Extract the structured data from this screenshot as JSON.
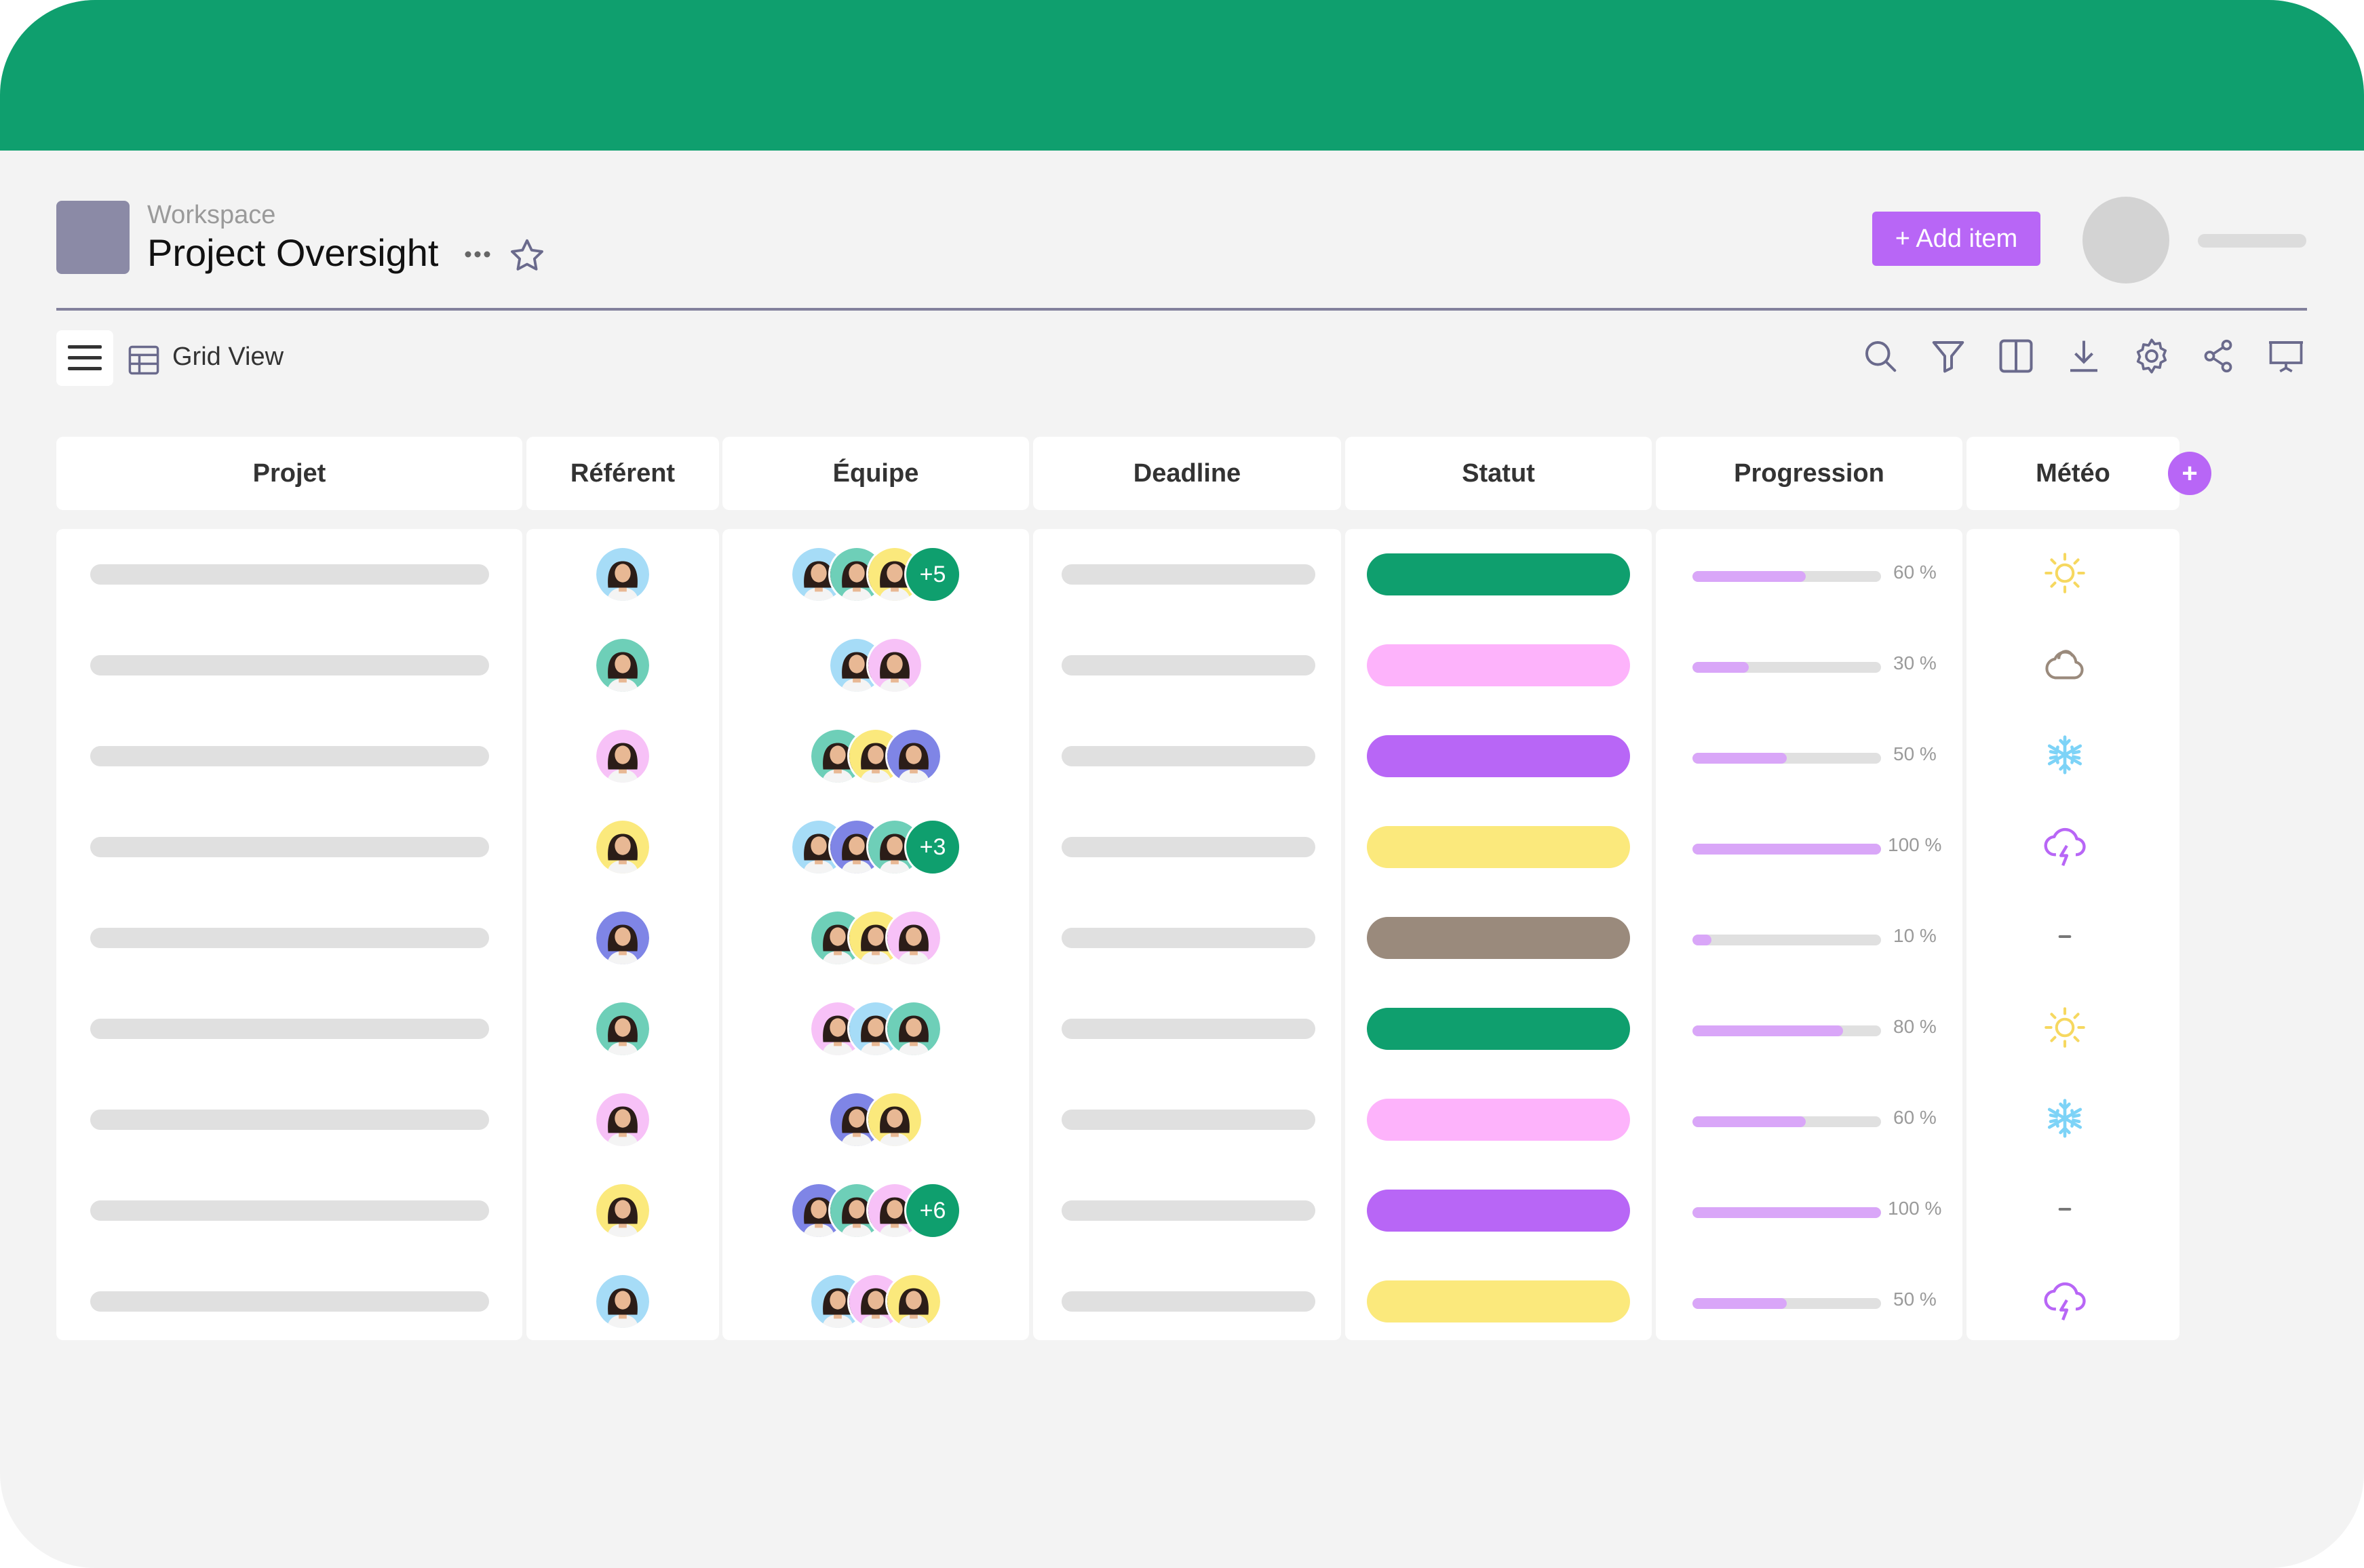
{
  "header": {
    "workspace_label": "Workspace",
    "project_title": "Project Oversight",
    "add_item_label": "+ Add item"
  },
  "toolbar": {
    "view_label": "Grid View",
    "tools": [
      "search-icon",
      "filter-icon",
      "split-view-icon",
      "download-icon",
      "settings-icon",
      "share-icon",
      "present-icon"
    ]
  },
  "columns": {
    "projet": "Projet",
    "referent": "Référent",
    "equipe": "Équipe",
    "deadline": "Deadline",
    "statut": "Statut",
    "progression": "Progression",
    "meteo": "Météo",
    "add_column": "+"
  },
  "colors": {
    "brand_green": "#0f9f6e",
    "accent_purple": "#b866f6",
    "progress_fill": "#d9a6f8",
    "status_green": "#0f9f6e",
    "status_pink": "#fdb3fb",
    "status_purple": "#b866f6",
    "status_yellow": "#fbe97c",
    "status_taupe": "#9a8a7c"
  },
  "rows": [
    {
      "referent_color": "#a6dcf7",
      "team": [
        "#a6dcf7",
        "#6ecfb8",
        "#fbe97c"
      ],
      "team_more": "+5",
      "status_color": "#0f9f6e",
      "progress": 60,
      "progress_label": "60 %",
      "weather": "sun-icon"
    },
    {
      "referent_color": "#6ecfb8",
      "team": [
        "#a6dcf7",
        "#f7c1f7"
      ],
      "team_more": "",
      "status_color": "#fdb3fb",
      "progress": 30,
      "progress_label": "30 %",
      "weather": "cloud-icon"
    },
    {
      "referent_color": "#f7c1f7",
      "team": [
        "#6ecfb8",
        "#fbe97c",
        "#7f85e6"
      ],
      "team_more": "",
      "status_color": "#b866f6",
      "progress": 50,
      "progress_label": "50 %",
      "weather": "snowflake-icon"
    },
    {
      "referent_color": "#fbe97c",
      "team": [
        "#a6dcf7",
        "#7f85e6",
        "#6ecfb8"
      ],
      "team_more": "+3",
      "status_color": "#fbe97c",
      "progress": 100,
      "progress_label": "100 %",
      "weather": "storm-icon"
    },
    {
      "referent_color": "#7f85e6",
      "team": [
        "#6ecfb8",
        "#fbe97c",
        "#f7c1f7"
      ],
      "team_more": "",
      "status_color": "#9a8a7c",
      "progress": 10,
      "progress_label": "10 %",
      "weather": "dash-icon"
    },
    {
      "referent_color": "#6ecfb8",
      "team": [
        "#f7c1f7",
        "#a6dcf7",
        "#6ecfb8"
      ],
      "team_more": "",
      "status_color": "#0f9f6e",
      "progress": 80,
      "progress_label": "80 %",
      "weather": "sun-icon"
    },
    {
      "referent_color": "#f7c1f7",
      "team": [
        "#7f85e6",
        "#fbe97c"
      ],
      "team_more": "",
      "status_color": "#fdb3fb",
      "progress": 60,
      "progress_label": "60 %",
      "weather": "snowflake-icon"
    },
    {
      "referent_color": "#fbe97c",
      "team": [
        "#7f85e6",
        "#6ecfb8",
        "#f7c1f7"
      ],
      "team_more": "+6",
      "status_color": "#b866f6",
      "progress": 100,
      "progress_label": "100 %",
      "weather": "dash-icon"
    },
    {
      "referent_color": "#a6dcf7",
      "team": [
        "#a6dcf7",
        "#f7c1f7",
        "#fbe97c"
      ],
      "team_more": "",
      "status_color": "#fbe97c",
      "progress": 50,
      "progress_label": "50 %",
      "weather": "storm-icon"
    }
  ]
}
